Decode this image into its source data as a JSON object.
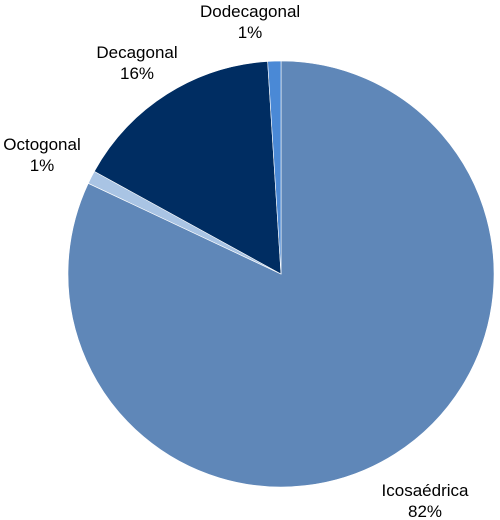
{
  "chart_data": {
    "type": "pie",
    "title": "",
    "legend": "none",
    "start_angle_deg": 0,
    "direction": "clockwise",
    "slices": [
      {
        "label": "Icosaédrica",
        "value": 82,
        "value_label": "82%",
        "color": "#5f87b8"
      },
      {
        "label": "Octogonal",
        "value": 1,
        "value_label": "1%",
        "color": "#a9c4e4"
      },
      {
        "label": "Decagonal",
        "value": 16,
        "value_label": "16%",
        "color": "#002d62"
      },
      {
        "label": "Dodecagonal",
        "value": 1,
        "value_label": "1%",
        "color": "#4a89d6"
      }
    ]
  }
}
